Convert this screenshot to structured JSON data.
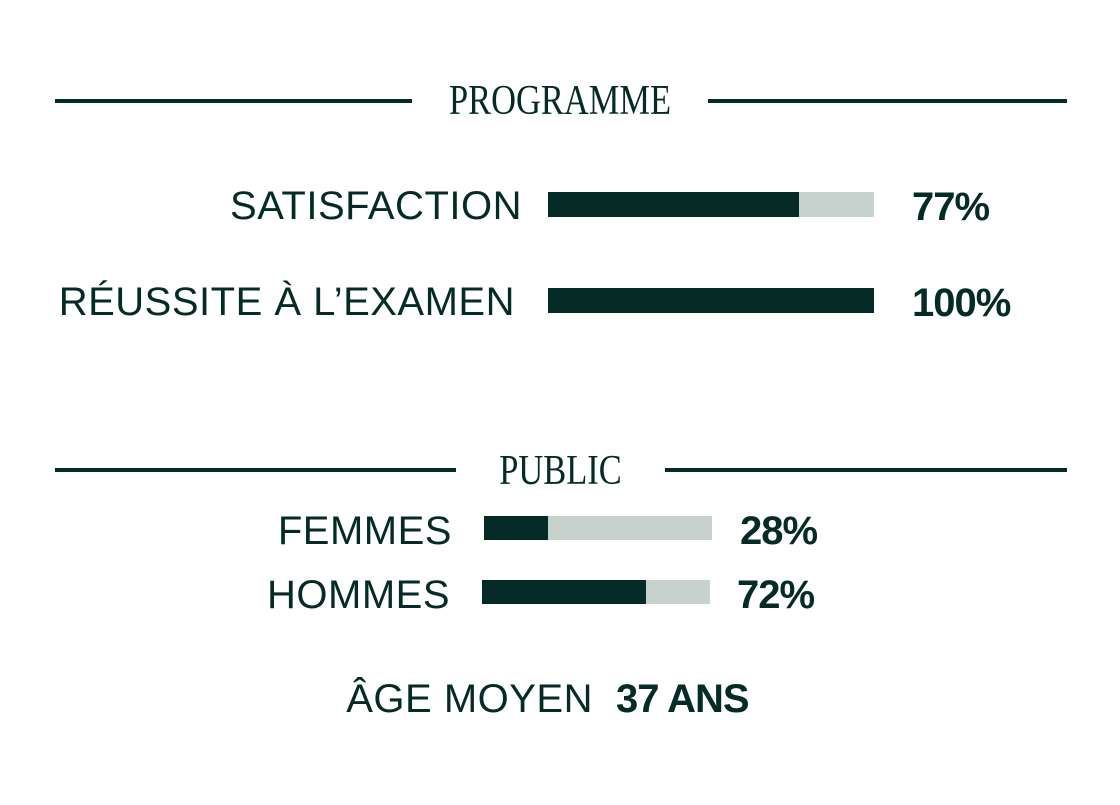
{
  "colors": {
    "filled": "#042b25",
    "track": "#c7d1ce",
    "text": "#042b25"
  },
  "programme": {
    "heading": "PROGRAMME",
    "items": [
      {
        "label": "SATISFACTION",
        "value": 77,
        "value_label": "77%"
      },
      {
        "label": "RÉUSSITE À L’EXAMEN",
        "value": 100,
        "value_label": "100%"
      }
    ]
  },
  "public": {
    "heading": "PUBLIC",
    "items": [
      {
        "label": "FEMMES",
        "value": 28,
        "value_label": "28%"
      },
      {
        "label": "HOMMES",
        "value": 72,
        "value_label": "72%"
      }
    ],
    "age_label": "ÂGE MOYEN",
    "age_value": "37 ANS"
  },
  "chart_data": {
    "type": "bar",
    "orientation": "horizontal",
    "unit": "%",
    "xlim": [
      0,
      100
    ],
    "groups": [
      {
        "title": "PROGRAMME",
        "categories": [
          "SATISFACTION",
          "RÉUSSITE À L’EXAMEN"
        ],
        "values": [
          77,
          100
        ]
      },
      {
        "title": "PUBLIC",
        "categories": [
          "FEMMES",
          "HOMMES"
        ],
        "values": [
          28,
          72
        ]
      }
    ]
  }
}
